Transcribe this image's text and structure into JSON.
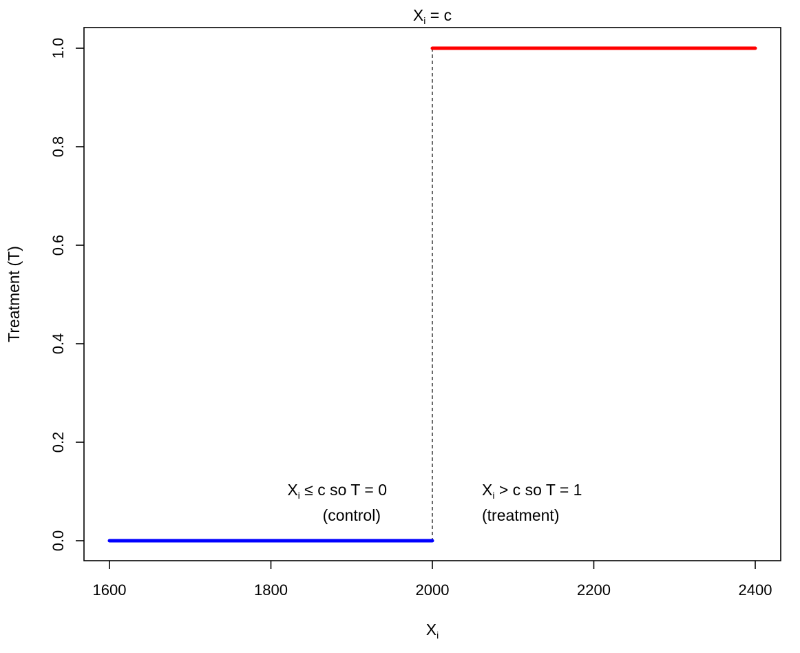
{
  "chart_data": {
    "type": "line",
    "xlim": [
      1600,
      2400
    ],
    "ylim": [
      0,
      1
    ],
    "x_ticks": [
      "1600",
      "1800",
      "2000",
      "2200",
      "2400"
    ],
    "y_ticks": [
      "0.0",
      "0.2",
      "0.4",
      "0.6",
      "0.8",
      "1.0"
    ],
    "xlabel": {
      "base": "X",
      "sub": "i"
    },
    "ylabel": "Treatment (T)",
    "grid": false,
    "legend": "none",
    "cutoff": {
      "x": 2000,
      "label": {
        "base": "X",
        "sub": "i",
        "rest": " = c"
      }
    },
    "series": [
      {
        "x": [
          1600,
          2000
        ],
        "y": [
          0,
          0
        ],
        "color": "#0000ff"
      },
      {
        "x": [
          2000,
          2400
        ],
        "y": [
          1,
          1
        ],
        "color": "#ff0000"
      }
    ],
    "annotations": [
      {
        "base": "X",
        "sub": "i",
        "rest": " ≤ c so   T = 0",
        "second_line": "(control)",
        "x": 2000,
        "y": 0.1,
        "align": "left-of-cutoff"
      },
      {
        "base": "X",
        "sub": "i",
        "rest": " > c so  T = 1",
        "second_line": "(treatment)",
        "x": 2000,
        "y": 0.1,
        "align": "right-of-cutoff"
      }
    ]
  }
}
